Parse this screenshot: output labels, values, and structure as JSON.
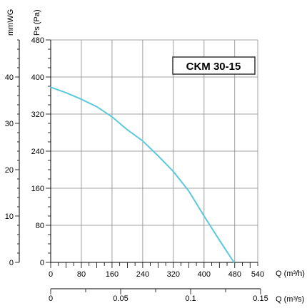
{
  "chart_data": {
    "type": "line",
    "model_label": "CKM 30-15",
    "series": [
      {
        "color": "#5bc8dc",
        "x": [
          0,
          40,
          80,
          120,
          160,
          200,
          240,
          280,
          320,
          360,
          400,
          440,
          478
        ],
        "y": [
          378,
          366,
          352,
          336,
          314,
          286,
          262,
          230,
          196,
          154,
          100,
          48,
          0
        ]
      }
    ],
    "x_axis": {
      "label": "Q (m³/h)",
      "ticks": [
        "0",
        "80",
        "160",
        "240",
        "320",
        "400",
        "480",
        "540"
      ],
      "range": [
        0,
        540
      ]
    },
    "x2_axis": {
      "label": "Q (m³/s)",
      "ticks": [
        "0",
        "0.05",
        "0.1",
        "0.15"
      ],
      "range": [
        0,
        0.15
      ]
    },
    "y_axis": {
      "label": "Ps (Pa)",
      "ticks": [
        "0",
        "80",
        "160",
        "240",
        "320",
        "400",
        "480"
      ],
      "range": [
        0,
        480
      ]
    },
    "y2_axis": {
      "label": "mmWG",
      "ticks": [
        "0",
        "10",
        "20",
        "30",
        "40"
      ],
      "range": [
        0,
        48
      ]
    },
    "grid": true
  }
}
